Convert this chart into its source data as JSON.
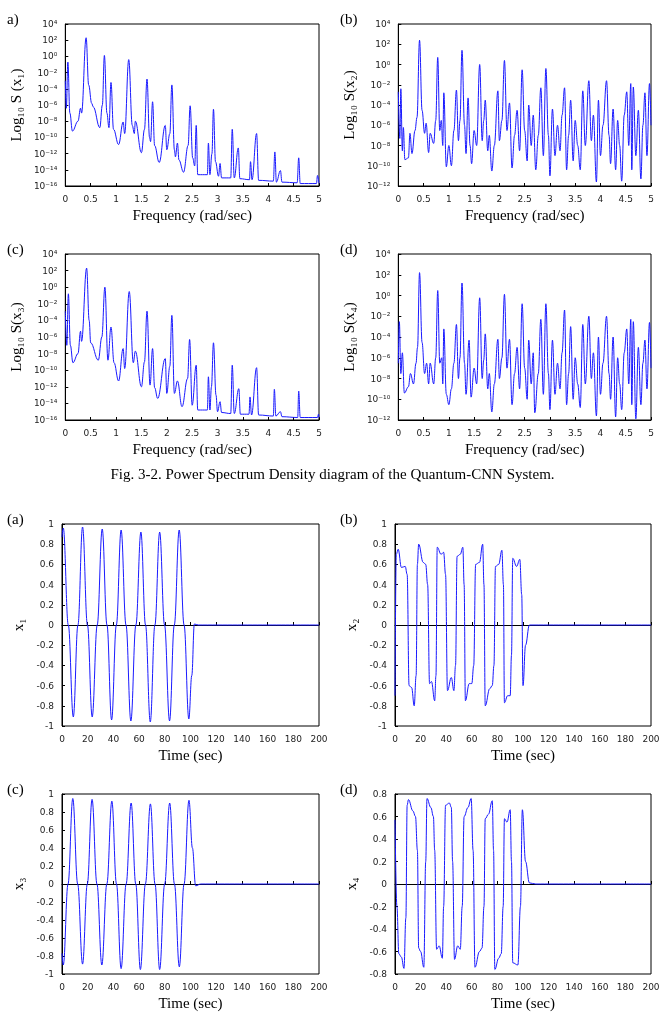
{
  "chart_data": [
    {
      "type": "line",
      "title": "a)",
      "xlabel": "Frequency (rad/sec)",
      "ylabel": "Log₁₀ S (x₁)",
      "log": "y",
      "marker": "none",
      "color": "#1a1aff",
      "xlim": [
        0,
        5
      ],
      "xticks": [
        0,
        0.5,
        1,
        1.5,
        2,
        2.5,
        3,
        3.5,
        4,
        4.5,
        5
      ],
      "ylim": [
        1e-16,
        10000.0
      ],
      "yticks": [
        {
          "value": 10000.0,
          "label": "10⁴"
        },
        {
          "value": 100.0,
          "label": "10²"
        },
        {
          "value": 1,
          "label": "10⁰"
        },
        {
          "value": 0.01,
          "label": "10⁻²"
        },
        {
          "value": 0.0001,
          "label": "10⁻⁴"
        },
        {
          "value": 1e-06,
          "label": "10⁻⁶"
        },
        {
          "value": 1e-08,
          "label": "10⁻⁸"
        },
        {
          "value": 1e-10,
          "label": "10⁻¹⁰"
        },
        {
          "value": 1e-12,
          "label": "10⁻¹²"
        },
        {
          "value": 1e-14,
          "label": "10⁻¹⁴"
        },
        {
          "value": 1e-16,
          "label": "10⁻¹⁶"
        }
      ],
      "x": [
        0,
        0.02,
        0.05,
        0.09,
        0.14,
        0.25,
        0.3,
        0.32,
        0.41,
        0.46,
        0.52,
        0.55,
        0.68,
        0.73,
        0.77,
        0.82,
        0.86,
        0.9,
        0.95,
        1.05,
        1.14,
        1.17,
        1.25,
        1.32,
        1.36,
        1.38,
        1.5,
        1.56,
        1.61,
        1.66,
        1.68,
        1.72,
        1.76,
        1.85,
        1.97,
        2.0,
        2.06,
        2.1,
        2.15,
        2.17,
        2.21,
        2.24,
        2.33,
        2.42,
        2.46,
        2.51,
        2.55,
        2.58,
        2.61,
        2.8,
        2.82,
        2.85,
        2.89,
        2.92,
        2.96,
        3.02,
        3.05,
        3.08,
        3.26,
        3.29,
        3.33,
        3.41,
        3.44,
        3.63,
        3.65,
        3.68,
        3.77,
        3.81,
        4.1,
        4.13,
        4.16,
        4.24,
        4.27,
        4.57,
        4.6,
        4.63,
        4.95,
        4.97,
        5
      ],
      "values": [
        0.001,
        4e-07,
        0.2,
        1e-07,
        6e-10,
        1e-08,
        4e-07,
        1e-07,
        200.0,
        0.0003,
        1.6e-06,
        6e-07,
        1.6e-09,
        1e-06,
        1.3,
        1e-07,
        1.6e-09,
        0.0006,
        1e-09,
        1.3e-11,
        8e-09,
        3e-10,
        0.4,
        3e-09,
        3e-10,
        1e-08,
        1.3e-12,
        1e-09,
        0.0016,
        1e-10,
        3e-11,
        2.5e-06,
        1e-11,
        8e-14,
        3e-09,
        3e-12,
        3e-10,
        0.0003,
        3e-12,
        4e-13,
        2e-11,
        1.6e-13,
        5e-15,
        1e-11,
        8e-07,
        3e-13,
        3e-14,
        3e-09,
        2.5e-15,
        2.5e-15,
        2e-11,
        2.5e-15,
        1e-12,
        3e-07,
        1e-13,
        1.6e-15,
        6e-14,
        1e-15,
        1e-15,
        1e-09,
        1e-15,
        5e-12,
        8e-16,
        6e-16,
        1e-13,
        6e-16,
        3e-10,
        5e-16,
        4e-16,
        1.6e-12,
        3e-16,
        8e-15,
        3e-16,
        2.5e-16,
        3e-13,
        2e-16,
        2e-16,
        2e-15,
        2e-16
      ]
    },
    {
      "type": "line",
      "title": "(b)",
      "xlabel": "Frequency (rad/sec)",
      "ylabel": "Log₁₀ S(x₂)",
      "log": "y",
      "marker": "none",
      "color": "#1a1aff",
      "xlim": [
        0,
        5
      ],
      "xticks": [
        0,
        0.5,
        1,
        1.5,
        2,
        2.5,
        3,
        3.5,
        4,
        4.5,
        5
      ],
      "ylim": [
        1e-12,
        10000.0
      ],
      "yticks": [
        {
          "value": 10000.0,
          "label": "10⁴"
        },
        {
          "value": 100.0,
          "label": "10²"
        },
        {
          "value": 1,
          "label": "10⁰"
        },
        {
          "value": 0.01,
          "label": "10⁻²"
        },
        {
          "value": 0.0001,
          "label": "10⁻⁴"
        },
        {
          "value": 1e-06,
          "label": "10⁻⁶"
        },
        {
          "value": 1e-08,
          "label": "10⁻⁸"
        },
        {
          "value": 1e-10,
          "label": "10⁻¹⁰"
        },
        {
          "value": 1e-12,
          "label": "10⁻¹²"
        }
      ],
      "x": [
        0,
        0.03,
        0.05,
        0.08,
        0.1,
        0.13,
        0.2,
        0.23,
        0.27,
        0.33,
        0.37,
        0.42,
        0.47,
        0.52,
        0.55,
        0.6,
        0.63,
        0.7,
        0.74,
        0.78,
        0.82,
        0.85,
        0.88,
        0.9,
        0.95,
        1.0,
        1.05,
        1.1,
        1.15,
        1.19,
        1.22,
        1.26,
        1.31,
        1.34,
        1.38,
        1.42,
        1.45,
        1.5,
        1.55,
        1.61,
        1.66,
        1.69,
        1.72,
        1.77,
        1.8,
        1.85,
        1.9,
        1.97,
        2.0,
        2.05,
        2.1,
        2.15,
        2.2,
        2.25,
        2.3,
        2.35,
        2.4,
        2.45,
        2.5,
        2.55,
        2.58,
        2.63,
        2.67,
        2.72,
        2.77,
        2.82,
        2.87,
        2.92,
        2.97,
        3.0,
        3.05,
        3.1,
        3.15,
        3.2,
        3.24,
        3.29,
        3.33,
        3.37,
        3.41,
        3.46,
        3.5,
        3.55,
        3.6,
        3.65,
        3.7,
        3.77,
        3.82,
        3.86,
        3.92,
        3.96,
        4.0,
        4.05,
        4.12,
        4.17,
        4.2,
        4.25,
        4.3,
        4.34,
        4.38,
        4.42,
        4.47,
        4.52,
        4.56,
        4.6,
        4.62,
        4.65,
        4.7,
        4.75,
        4.8,
        4.84,
        4.88,
        4.92,
        4.97,
        5
      ],
      "values": [
        0.002,
        5e-08,
        0.004,
        3e-09,
        6e-07,
        4e-10,
        6e-10,
        1.6e-07,
        1.6e-09,
        3e-07,
        6e-06,
        250.0,
        3e-05,
        1.6e-07,
        1.6e-06,
        2e-09,
        1.6e-07,
        1.6e-08,
        3e-06,
        5,
        3e-07,
        3e-06,
        1e-08,
        0.0016,
        8e-11,
        1e-08,
        1e-10,
        3e-07,
        0.003,
        3e-08,
        3e-06,
        25,
        1e-06,
        1.6e-09,
        0.0005,
        1e-08,
        1.6e-10,
        3e-07,
        1e-08,
        1,
        3e-08,
        3e-06,
        0.0003,
        3e-09,
        1e-07,
        3e-11,
        1e-08,
        0.0025,
        3e-08,
        3e-06,
        2.5,
        3e-07,
        0.00016,
        6e-11,
        1e-07,
        3e-05,
        3e-09,
        0.3,
        3e-07,
        3e-10,
        0.0001,
        1e-08,
        1e-05,
        4e-11,
        1e-07,
        0.005,
        1e-09,
        0.4,
        1e-07,
        1e-11,
        4e-05,
        1e-09,
        1e-06,
        3e-09,
        1e-05,
        0.005,
        4e-11,
        1e-07,
        0.0003,
        3e-10,
        3e-06,
        1e-08,
        4e-11,
        0.0025,
        1e-08,
        0.025,
        3e-08,
        1e-05,
        2.5e-12,
        0.0003,
        1e-09,
        1e-06,
        0.025,
        1e-07,
        1.6e-10,
        4e-05,
        4e-11,
        3e-06,
        1e-08,
        3e-12,
        1e-05,
        0.002,
        1e-08,
        0.013,
        4e-11,
        0.006,
        1e-09,
        3e-05,
        5e-12,
        1e-06,
        0.0016,
        1e-09,
        0.013,
        1e-06
      ]
    },
    {
      "type": "line",
      "title": "(c)",
      "xlabel": "Frequency (rad/sec)",
      "ylabel": "Log₁₀ S(x₃)",
      "log": "y",
      "marker": "none",
      "color": "#1a1aff",
      "xlim": [
        0,
        5
      ],
      "xticks": [
        0,
        0.5,
        1,
        1.5,
        2,
        2.5,
        3,
        3.5,
        4,
        4.5,
        5
      ],
      "ylim": [
        1e-16,
        10000.0
      ],
      "yticks": [
        {
          "value": 10000.0,
          "label": "10⁴"
        },
        {
          "value": 100.0,
          "label": "10²"
        },
        {
          "value": 1,
          "label": "10⁰"
        },
        {
          "value": 0.01,
          "label": "10⁻²"
        },
        {
          "value": 0.0001,
          "label": "10⁻⁴"
        },
        {
          "value": 1e-06,
          "label": "10⁻⁶"
        },
        {
          "value": 1e-08,
          "label": "10⁻⁸"
        },
        {
          "value": 1e-10,
          "label": "10⁻¹⁰"
        },
        {
          "value": 1e-12,
          "label": "10⁻¹²"
        },
        {
          "value": 1e-14,
          "label": "10⁻¹⁴"
        },
        {
          "value": 1e-16,
          "label": "10⁻¹⁶"
        }
      ],
      "x": [
        0,
        0.03,
        0.06,
        0.1,
        0.15,
        0.25,
        0.3,
        0.32,
        0.42,
        0.47,
        0.5,
        0.65,
        0.72,
        0.78,
        0.84,
        0.9,
        0.96,
        1.05,
        1.14,
        1.17,
        1.26,
        1.34,
        1.38,
        1.5,
        1.56,
        1.61,
        1.67,
        1.72,
        1.76,
        1.82,
        1.97,
        2.0,
        2.06,
        2.1,
        2.15,
        2.21,
        2.3,
        2.41,
        2.45,
        2.5,
        2.58,
        2.61,
        2.8,
        2.82,
        2.85,
        2.88,
        2.92,
        2.97,
        3.0,
        3.05,
        3.08,
        3.26,
        3.29,
        3.33,
        3.42,
        3.45,
        3.62,
        3.64,
        3.67,
        3.77,
        3.81,
        4.1,
        4.12,
        4.15,
        4.24,
        4.27,
        4.58,
        4.6,
        4.63,
        4.97,
        4.99,
        5
      ],
      "values": [
        0.0013,
        1e-07,
        0.16,
        1e-07,
        8e-10,
        1e-08,
        5e-06,
        3e-07,
        200.0,
        0.0001,
        2e-07,
        1.6e-09,
        1e-06,
        1,
        1.6e-09,
        1.6e-05,
        8e-10,
        5e-12,
        4e-08,
        1.6e-10,
        0.3,
        8e-10,
        2e-08,
        1e-12,
        1e-09,
        0.0013,
        1.6e-12,
        4e-08,
        8e-13,
        4e-14,
        2.5e-09,
        1.6e-13,
        3e-10,
        0.0004,
        1.6e-13,
        5e-12,
        4e-15,
        1e-11,
        5e-07,
        6e-15,
        4e-10,
        1.6e-15,
        1.6e-15,
        1.6e-11,
        1.6e-15,
        1e-12,
        2e-07,
        1e-13,
        1e-15,
        1.6e-14,
        8e-16,
        6e-16,
        4e-10,
        6e-16,
        6e-13,
        5e-16,
        5e-16,
        6e-14,
        4e-16,
        2e-10,
        4e-16,
        3e-16,
        5e-13,
        3e-16,
        1e-15,
        2.5e-16,
        2e-16,
        3e-13,
        2e-16,
        2e-16,
        5e-16,
        2e-16
      ]
    },
    {
      "type": "line",
      "title": "(d)",
      "xlabel": "Frequency (rad/sec)",
      "ylabel": "Log₁₀ S(x₄)",
      "log": "y",
      "marker": "none",
      "color": "#1a1aff",
      "xlim": [
        0,
        5
      ],
      "xticks": [
        0,
        0.5,
        1,
        1.5,
        2,
        2.5,
        3,
        3.5,
        4,
        4.5,
        5
      ],
      "ylim": [
        1e-12,
        10000.0
      ],
      "yticks": [
        {
          "value": 10000.0,
          "label": "10⁴"
        },
        {
          "value": 100.0,
          "label": "10²"
        },
        {
          "value": 1,
          "label": "10⁰"
        },
        {
          "value": 0.01,
          "label": "10⁻²"
        },
        {
          "value": 0.0001,
          "label": "10⁻⁴"
        },
        {
          "value": 1e-06,
          "label": "10⁻⁶"
        },
        {
          "value": 1e-08,
          "label": "10⁻⁸"
        },
        {
          "value": 1e-10,
          "label": "10⁻¹⁰"
        },
        {
          "value": 1e-12,
          "label": "10⁻¹²"
        }
      ],
      "x": [
        0,
        0.02,
        0.05,
        0.08,
        0.12,
        0.2,
        0.24,
        0.3,
        0.35,
        0.38,
        0.42,
        0.47,
        0.52,
        0.56,
        0.6,
        0.63,
        0.7,
        0.74,
        0.78,
        0.82,
        0.86,
        0.88,
        0.9,
        0.95,
        1.0,
        1.05,
        1.1,
        1.15,
        1.19,
        1.22,
        1.26,
        1.31,
        1.34,
        1.4,
        1.44,
        1.5,
        1.55,
        1.61,
        1.66,
        1.69,
        1.72,
        1.77,
        1.8,
        1.85,
        1.9,
        1.97,
        2.0,
        2.05,
        2.1,
        2.15,
        2.2,
        2.25,
        2.3,
        2.35,
        2.4,
        2.45,
        2.5,
        2.55,
        2.58,
        2.63,
        2.67,
        2.7,
        2.77,
        2.82,
        2.87,
        2.92,
        2.97,
        3.0,
        3.05,
        3.1,
        3.15,
        3.2,
        3.24,
        3.29,
        3.33,
        3.37,
        3.41,
        3.46,
        3.5,
        3.55,
        3.6,
        3.65,
        3.7,
        3.77,
        3.82,
        3.86,
        3.92,
        3.96,
        4.0,
        4.05,
        4.12,
        4.17,
        4.2,
        4.25,
        4.3,
        4.34,
        4.38,
        4.42,
        4.47,
        4.52,
        4.56,
        4.6,
        4.62,
        4.65,
        4.7,
        4.75,
        4.8,
        4.84,
        4.88,
        4.92,
        4.97,
        5
      ],
      "values": [
        3e-07,
        0.003,
        3e-08,
        3e-06,
        4e-10,
        1.6e-09,
        3e-08,
        3e-09,
        3e-07,
        1e-05,
        160.0,
        3e-05,
        3e-08,
        3e-07,
        3e-09,
        3e-07,
        3e-09,
        1e-06,
        3,
        3e-07,
        1e-06,
        3e-09,
        0.0006,
        3e-10,
        3e-11,
        1e-09,
        3e-07,
        0.0016,
        1e-08,
        1e-06,
        16,
        3e-07,
        3e-10,
        5e-05,
        1.6e-10,
        1e-07,
        3e-09,
        0.6,
        1e-08,
        6e-07,
        0.0002,
        1e-09,
        3e-08,
        6e-12,
        3e-09,
        6e-05,
        1e-08,
        1e-06,
        1.3,
        1e-07,
        6e-05,
        3e-11,
        3e-08,
        1e-05,
        1e-09,
        0.16,
        1e-07,
        1e-10,
        5e-05,
        3e-09,
        3e-06,
        5e-12,
        3e-08,
        0.005,
        3e-10,
        0.16,
        3e-08,
        1e-11,
        5e-05,
        3e-10,
        3e-07,
        1e-09,
        3e-06,
        0.04,
        3e-11,
        3e-08,
        0.001,
        1e-10,
        1e-06,
        3e-09,
        1.6e-11,
        0.0016,
        3e-09,
        0.01,
        1e-08,
        3e-06,
        2.5e-12,
        0.0001,
        3e-10,
        3e-07,
        0.01,
        3e-08,
        1e-10,
        0.0001,
        2e-12,
        1e-06,
        3e-09,
        1e-11,
        3e-06,
        0.0006,
        3e-09,
        0.005,
        3e-11,
        0.003,
        1.3e-12,
        1e-05,
        3e-11,
        3e-07,
        5e-05,
        1e-09,
        0.0025,
        1e-07
      ],
      "annotations": [
        "Fig. 3-2. Power Spectrum Density diagram of the Quantum-CNN System."
      ]
    },
    {
      "type": "line",
      "title": "(a)",
      "xlabel": "Time (sec)",
      "ylabel": "x₁",
      "marker": "none",
      "color": "#1a1aff",
      "xlim": [
        0,
        200
      ],
      "xticks": [
        0,
        20,
        40,
        60,
        80,
        100,
        120,
        140,
        160,
        180,
        200
      ],
      "ylim": [
        -1,
        1
      ],
      "yticks": [
        -1,
        -0.8,
        -0.6,
        -0.4,
        -0.2,
        0,
        0.2,
        0.4,
        0.6,
        0.8,
        1
      ],
      "x": [
        0,
        1,
        4.9,
        8.8,
        12.4,
        16,
        19.8,
        23.5,
        27.4,
        31.3,
        35,
        38.6,
        42.3,
        46,
        49.8,
        53.6,
        57.5,
        61.4,
        65,
        68.7,
        72.3,
        76,
        79.8,
        83.7,
        87.4,
        91.2,
        95,
        98.7,
        101,
        103,
        106,
        200
      ],
      "values": [
        0.87,
        0.96,
        0,
        -0.91,
        0,
        0.97,
        0,
        -0.91,
        0,
        0.95,
        0,
        -0.94,
        0,
        0.94,
        0,
        -0.95,
        0,
        0.92,
        0,
        -0.96,
        0,
        0.92,
        0,
        -0.95,
        0,
        0.94,
        0,
        -0.93,
        -0.5,
        0.01,
        0,
        0
      ]
    },
    {
      "type": "line",
      "title": "(b)",
      "xlabel": "Time (sec)",
      "ylabel": "x₂",
      "marker": "none",
      "color": "#1a1aff",
      "xlim": [
        0,
        200
      ],
      "xticks": [
        0,
        20,
        40,
        60,
        80,
        100,
        120,
        140,
        160,
        180,
        200
      ],
      "ylim": [
        -1,
        1
      ],
      "yticks": [
        -1,
        -0.8,
        -0.6,
        -0.4,
        -0.2,
        0,
        0.2,
        0.4,
        0.6,
        0.8,
        1
      ],
      "x": [
        0,
        1,
        2.5,
        5,
        8,
        9.5,
        11,
        13,
        15,
        16.5,
        17.5,
        18.5,
        22,
        24,
        25.5,
        27,
        28.5,
        31,
        32,
        33,
        36,
        38,
        39.5,
        41,
        44,
        46,
        47.3,
        48.5,
        51,
        53,
        54,
        55,
        58,
        60,
        61.5,
        63,
        66,
        68.5,
        69.5,
        70.5,
        74,
        76,
        77.3,
        78.5,
        81,
        83.5,
        84.7,
        85.5,
        88,
        90,
        91,
        92,
        95,
        97.5,
        99,
        100,
        102,
        105,
        200
      ],
      "values": [
        -0.7,
        0.7,
        0.75,
        0.57,
        0.58,
        0.5,
        -0.6,
        -0.62,
        -0.8,
        -0.5,
        0.6,
        0.8,
        0.62,
        0.6,
        0.4,
        -0.58,
        -0.56,
        -0.75,
        -0.5,
        0.77,
        0.7,
        0.72,
        0.5,
        -0.65,
        -0.52,
        -0.65,
        -0.4,
        0.68,
        0.7,
        0.77,
        0.4,
        -0.75,
        -0.58,
        -0.58,
        -0.4,
        0.6,
        0.62,
        0.8,
        0.4,
        -0.8,
        -0.63,
        -0.6,
        -0.4,
        0.58,
        0.6,
        0.74,
        0.4,
        -0.77,
        -0.7,
        -0.7,
        -0.3,
        0.66,
        0.58,
        0.65,
        0.3,
        -0.6,
        -0.2,
        0,
        0
      ]
    },
    {
      "type": "line",
      "title": "(c)",
      "xlabel": "Time (sec)",
      "ylabel": "x₃",
      "marker": "none",
      "color": "#1a1aff",
      "xlim": [
        0,
        200
      ],
      "xticks": [
        0,
        20,
        40,
        60,
        80,
        100,
        120,
        140,
        160,
        180,
        200
      ],
      "ylim": [
        -1,
        1
      ],
      "yticks": [
        -1,
        -0.8,
        -0.6,
        -0.4,
        -0.2,
        0,
        0.2,
        0.4,
        0.6,
        0.8,
        1
      ],
      "x": [
        0,
        1,
        4.7,
        8.4,
        12.2,
        16,
        19.7,
        23.4,
        27.2,
        31,
        34.9,
        38.8,
        42.4,
        46,
        49.9,
        53.8,
        57.4,
        61,
        64.9,
        68.8,
        72.4,
        76,
        79.9,
        83.8,
        87.5,
        91.3,
        95,
        98.8,
        101.5,
        104,
        108,
        200
      ],
      "values": [
        -0.77,
        -0.9,
        0,
        0.95,
        0,
        -0.89,
        0,
        0.94,
        0,
        -0.9,
        0,
        0.92,
        0,
        -0.94,
        0,
        0.9,
        0,
        -0.95,
        0,
        0.89,
        0,
        -0.95,
        0,
        0.9,
        0,
        -0.92,
        0,
        0.93,
        0.4,
        -0.02,
        0,
        0
      ]
    },
    {
      "type": "line",
      "title": "(d)",
      "xlabel": "Time (sec)",
      "ylabel": "x₄",
      "marker": "none",
      "color": "#1a1aff",
      "xlim": [
        0,
        200
      ],
      "xticks": [
        0,
        20,
        40,
        60,
        80,
        100,
        120,
        140,
        160,
        180,
        200
      ],
      "ylim": [
        -0.8,
        0.8
      ],
      "yticks": [
        -0.8,
        -0.6,
        -0.4,
        -0.2,
        0,
        0.2,
        0.4,
        0.6,
        0.8
      ],
      "x": [
        0,
        1.5,
        3,
        5,
        7,
        8.5,
        9.5,
        10.5,
        14,
        16,
        17.5,
        18.5,
        20,
        22.5,
        24,
        25,
        28,
        30,
        31,
        32.5,
        34.5,
        37,
        38,
        39.5,
        42.5,
        44,
        45,
        46.5,
        49,
        51,
        52.5,
        54,
        57,
        59.5,
        61,
        62.5,
        66,
        68,
        69.5,
        70.5,
        73,
        76,
        77,
        78,
        81,
        83,
        84.5,
        85.5,
        87.5,
        90,
        91,
        92,
        96,
        98,
        99.5,
        102,
        105,
        110,
        200
      ],
      "values": [
        0.57,
        -0.2,
        -0.62,
        -0.65,
        -0.75,
        -0.3,
        0.7,
        0.75,
        0.65,
        0.6,
        0.3,
        -0.57,
        -0.6,
        -0.74,
        0.2,
        0.76,
        0.68,
        0.6,
        0.3,
        -0.58,
        -0.55,
        -0.66,
        -0.2,
        0.7,
        0.72,
        0.68,
        0.2,
        -0.67,
        -0.55,
        -0.58,
        -0.2,
        0.6,
        0.68,
        0.76,
        0.3,
        -0.74,
        -0.6,
        -0.57,
        -0.2,
        0.58,
        0.62,
        0.74,
        0.3,
        -0.76,
        -0.66,
        -0.62,
        -0.2,
        0.58,
        0.55,
        0.66,
        0.2,
        -0.7,
        -0.72,
        -0.2,
        0.66,
        0.2,
        0.01,
        0,
        0
      ]
    }
  ]
}
